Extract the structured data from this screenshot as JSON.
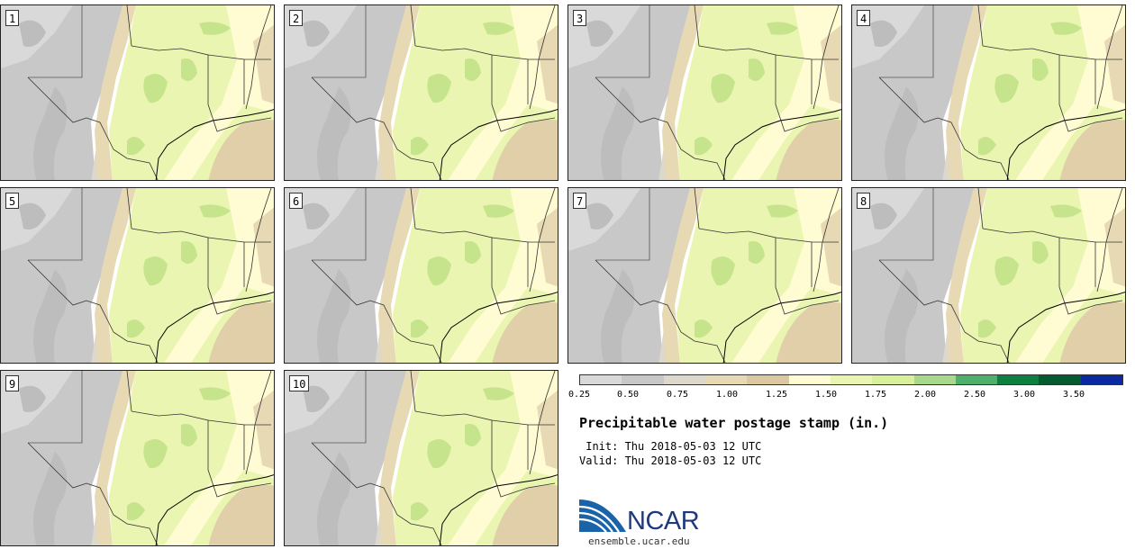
{
  "panels": [
    {
      "label": "1"
    },
    {
      "label": "2"
    },
    {
      "label": "3"
    },
    {
      "label": "4"
    },
    {
      "label": "5"
    },
    {
      "label": "6"
    },
    {
      "label": "7"
    },
    {
      "label": "8"
    },
    {
      "label": "9"
    },
    {
      "label": "10"
    }
  ],
  "colorbar": {
    "colors": [
      "#d9d9d9",
      "#c8c8c8",
      "#dcd8cc",
      "#e8d9b5",
      "#dcc8a0",
      "#fffbd2",
      "#e9f5b0",
      "#d8ef9c",
      "#a8d88c",
      "#4fb06c",
      "#0d8040",
      "#055a30",
      "#0a28a0"
    ],
    "ticks": [
      "0.25",
      "0.50",
      "0.75",
      "1.00",
      "1.25",
      "1.50",
      "1.75",
      "2.00",
      "2.50",
      "3.00",
      "3.50"
    ]
  },
  "title": "Precipitable water postage stamp (in.)",
  "init": " Init: Thu 2018-05-03 12 UTC",
  "valid": "Valid: Thu 2018-05-03 12 UTC",
  "logo": {
    "text": "NCAR",
    "site": "ensemble.ucar.edu"
  }
}
